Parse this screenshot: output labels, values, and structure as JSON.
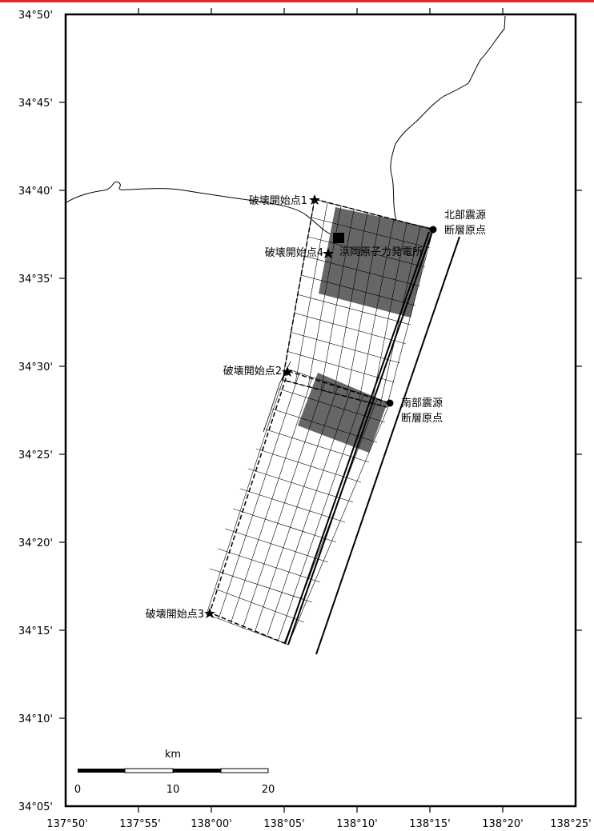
{
  "colors": {
    "frame": "#000000",
    "fill_dark": "#666666",
    "top_accent": "#e0262d"
  },
  "axes": {
    "lon_labels": [
      "137°50'",
      "137°55'",
      "138°00'",
      "138°05'",
      "138°10'",
      "138°15'",
      "138°20'",
      "138°25'"
    ],
    "lat_labels": [
      "34°50'",
      "34°45'",
      "34°40'",
      "34°35'",
      "34°30'",
      "34°25'",
      "34°20'",
      "34°15'",
      "34°10'",
      "34°05'"
    ]
  },
  "annotations": {
    "start1": "破壊開始点1",
    "start2": "破壊開始点2",
    "start3": "破壊開始点3",
    "start4": "破壊開始点4",
    "plant": "浜岡原子力発電所",
    "north_origin_line1": "北部震源",
    "north_origin_line2": "断層原点",
    "south_origin_line1": "南部震源",
    "south_origin_line2": "断層原点"
  },
  "scale_bar": {
    "unit": "km",
    "labels": [
      "0",
      "10",
      "20"
    ]
  }
}
